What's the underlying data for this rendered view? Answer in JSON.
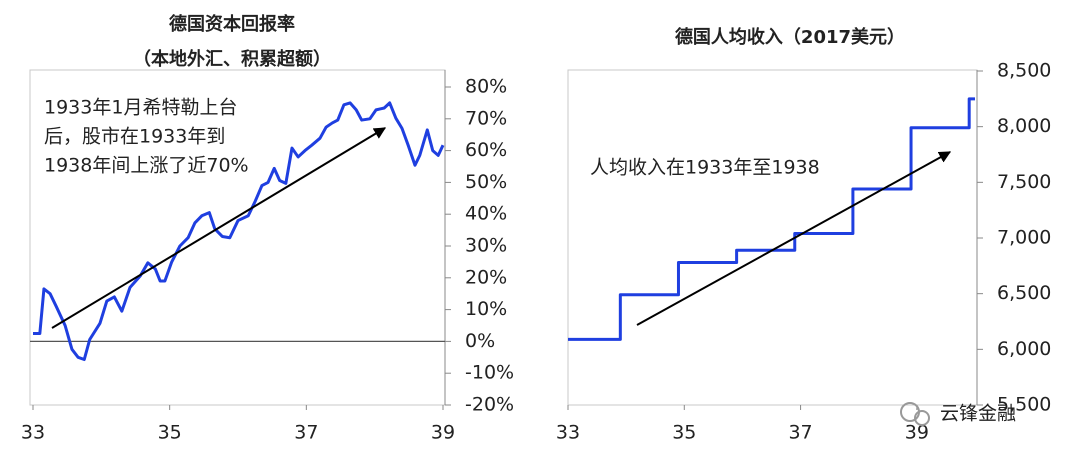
{
  "chart_data": [
    {
      "type": "line",
      "title": "德国资本回报率",
      "subtitle": "（本地外汇、积累超额）",
      "annotation": [
        "1933年1月希特勒上台",
        "后，股市在1933年到",
        "1938年间上涨了近70%"
      ],
      "x": [
        33.0,
        33.1,
        33.16,
        33.25,
        33.34,
        33.47,
        33.57,
        33.66,
        33.75,
        33.83,
        33.98,
        34.08,
        34.19,
        34.3,
        34.42,
        34.57,
        34.68,
        34.79,
        34.86,
        34.93,
        35.03,
        35.15,
        35.27,
        35.37,
        35.47,
        35.58,
        35.66,
        35.77,
        35.88,
        36.0,
        36.15,
        36.25,
        36.35,
        36.44,
        36.53,
        36.61,
        36.7,
        36.79,
        36.88,
        36.98,
        37.08,
        37.2,
        37.29,
        37.38,
        37.46,
        37.55,
        37.64,
        37.73,
        37.81,
        37.93,
        38.02,
        38.14,
        38.22,
        38.31,
        38.4,
        38.49,
        38.59,
        38.66,
        38.77,
        38.85,
        38.93,
        39.0
      ],
      "series": [
        {
          "name": "德国资本回报率",
          "color": "#1f3fe0",
          "values": [
            2.5,
            2.5,
            16.5,
            15,
            11,
            5,
            -2.5,
            -5,
            -5.7,
            0.6,
            5.7,
            12.7,
            14,
            9.5,
            17,
            20.6,
            24.7,
            22.8,
            19,
            19,
            25,
            30,
            32.6,
            37.3,
            39.5,
            40.5,
            35.4,
            33,
            32.6,
            38,
            39.5,
            44,
            49,
            50,
            54.4,
            50.6,
            49.7,
            60.8,
            58,
            60,
            61.7,
            63.9,
            67.4,
            68.7,
            69.6,
            74.4,
            75,
            72.8,
            69.6,
            70,
            72.8,
            73.4,
            75,
            70.2,
            67,
            61.7,
            55.4,
            58.5,
            66.5,
            60,
            58.5,
            61.7
          ]
        }
      ],
      "xlim": [
        33,
        39
      ],
      "xticks": [
        33,
        35,
        37,
        39
      ],
      "ylim": [
        -20,
        80
      ],
      "yticks": [
        {
          "value": -20,
          "label": "-20%"
        },
        {
          "value": -10,
          "label": "-10%"
        },
        {
          "value": 0,
          "label": "0%"
        },
        {
          "value": 10,
          "label": "10%"
        },
        {
          "value": 20,
          "label": "20%"
        },
        {
          "value": 30,
          "label": "30%"
        },
        {
          "value": 40,
          "label": "40%"
        },
        {
          "value": 50,
          "label": "50%"
        },
        {
          "value": 60,
          "label": "60%"
        },
        {
          "value": 70,
          "label": "70%"
        },
        {
          "value": 80,
          "label": "80%"
        }
      ]
    },
    {
      "type": "line",
      "title": "德国人均收入（2017美元）",
      "annotation": [
        "人均收入在1933年至1938"
      ],
      "x": [
        33,
        33.9,
        33.9,
        34.9,
        34.9,
        35.9,
        35.9,
        36.9,
        36.9,
        37.9,
        37.9,
        38.9,
        38.9,
        39.9,
        39.9,
        40
      ],
      "series": [
        {
          "name": "德国人均收入",
          "color": "#1f3fe0",
          "values": [
            6090,
            6090,
            6490,
            6490,
            6780,
            6780,
            6890,
            6890,
            7040,
            7040,
            7440,
            7440,
            7990,
            7990,
            8250,
            8250
          ]
        }
      ],
      "xlim": [
        33,
        40
      ],
      "xticks": [
        33,
        35,
        37,
        39
      ],
      "ylim": [
        5500,
        8500
      ],
      "yticks": [
        {
          "value": 5500,
          "label": "5,500"
        },
        {
          "value": 6000,
          "label": "6,000"
        },
        {
          "value": 6500,
          "label": "6,500"
        },
        {
          "value": 7000,
          "label": "7,000"
        },
        {
          "value": 7500,
          "label": "7,500"
        },
        {
          "value": 8000,
          "label": "8,000"
        },
        {
          "value": 8500,
          "label": "8,500"
        }
      ],
      "watermark": "云锋金融"
    }
  ]
}
